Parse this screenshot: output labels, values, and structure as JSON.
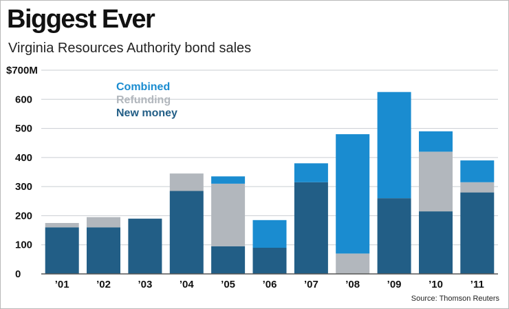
{
  "title": "Biggest Ever",
  "subtitle": "Virginia Resources Authority bond sales",
  "source": "Source: Thomson Reuters",
  "colors": {
    "new_money": "#225e86",
    "refunding": "#b2b7bd",
    "combined": "#1a8cd0",
    "gridline": "#c9cdd2",
    "axis": "#555555"
  },
  "chart_data": {
    "type": "bar",
    "stacked": true,
    "categories": [
      "’01",
      "’02",
      "’03",
      "’04",
      "’05",
      "’06",
      "’07",
      "’08",
      "’09",
      "’10",
      "’11"
    ],
    "y_tick_labels": [
      "0",
      "100",
      "200",
      "300",
      "400",
      "500",
      "600",
      "$700M"
    ],
    "y_ticks": [
      0,
      100,
      200,
      300,
      400,
      500,
      600,
      700
    ],
    "ylim": [
      0,
      700
    ],
    "grid": true,
    "legend_position": "top-left",
    "series": [
      {
        "name": "New money",
        "color": "#225e86",
        "values": [
          160,
          160,
          190,
          285,
          95,
          90,
          315,
          0,
          260,
          215,
          280
        ]
      },
      {
        "name": "Refunding",
        "color": "#b2b7bd",
        "values": [
          15,
          35,
          0,
          60,
          215,
          0,
          0,
          70,
          0,
          205,
          35
        ]
      },
      {
        "name": "Combined",
        "color": "#1a8cd0",
        "values": [
          0,
          0,
          0,
          0,
          25,
          95,
          65,
          410,
          365,
          70,
          75
        ]
      }
    ],
    "legend": [
      {
        "label": "Combined",
        "color": "#1a8cd0"
      },
      {
        "label": "Refunding",
        "color": "#b2b7bd"
      },
      {
        "label": "New money",
        "color": "#225e86"
      }
    ]
  }
}
